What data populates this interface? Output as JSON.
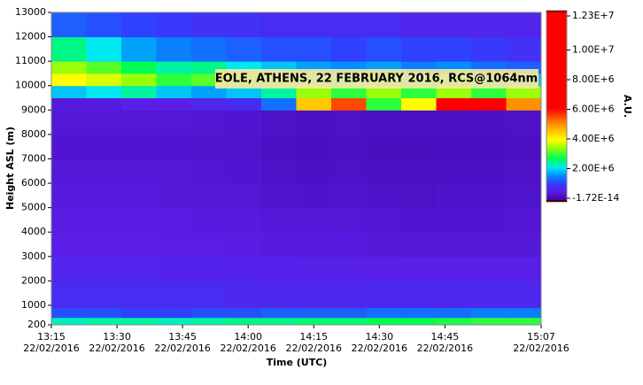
{
  "chart_data": {
    "type": "heatmap",
    "title": "EOLE, ATHENS, 22 FEBRUARY 2016, RCS@1064nm",
    "x_label": "Time (UTC)",
    "y_label": "Height ASL (m)",
    "colorbar_label": "A.U.",
    "x": [
      795,
      803,
      811,
      819,
      827,
      835,
      843,
      851,
      859,
      867,
      875,
      883,
      891,
      899,
      907
    ],
    "y": [
      200,
      500,
      900,
      2000,
      3000,
      4000,
      5000,
      6000,
      7000,
      8000,
      9000,
      9500,
      10000,
      10500,
      11000,
      12000,
      13000
    ],
    "values": [
      [
        2400000,
        2500000,
        2500000,
        2400000,
        2500000,
        2600000,
        2600000,
        2700000,
        2700000,
        2800000,
        2800000,
        2900000,
        3000000,
        3000000
      ],
      [
        1300000,
        1300000,
        1200000,
        1200000,
        1300000,
        1300000,
        1400000,
        1400000,
        1400000,
        1500000,
        1500000,
        1500000,
        1600000,
        1600000
      ],
      [
        900000,
        900000,
        900000,
        900000,
        900000,
        850000,
        850000,
        850000,
        850000,
        850000,
        850000,
        850000,
        850000,
        850000
      ],
      [
        800000,
        800000,
        800000,
        780000,
        780000,
        760000,
        750000,
        740000,
        740000,
        720000,
        720000,
        720000,
        720000,
        720000
      ],
      [
        700000,
        700000,
        700000,
        680000,
        680000,
        650000,
        620000,
        600000,
        600000,
        580000,
        560000,
        560000,
        560000,
        560000
      ],
      [
        650000,
        650000,
        640000,
        640000,
        620000,
        600000,
        560000,
        550000,
        540000,
        520000,
        500000,
        500000,
        500000,
        520000
      ],
      [
        600000,
        600000,
        600000,
        580000,
        560000,
        540000,
        480000,
        450000,
        460000,
        440000,
        420000,
        440000,
        440000,
        460000
      ],
      [
        550000,
        550000,
        550000,
        540000,
        520000,
        500000,
        420000,
        400000,
        420000,
        380000,
        380000,
        400000,
        400000,
        420000
      ],
      [
        500000,
        500000,
        500000,
        500000,
        480000,
        460000,
        380000,
        350000,
        380000,
        340000,
        340000,
        360000,
        360000,
        380000
      ],
      [
        550000,
        550000,
        550000,
        540000,
        520000,
        500000,
        420000,
        400000,
        420000,
        380000,
        380000,
        400000,
        400000,
        420000
      ],
      [
        600000,
        600000,
        700000,
        700000,
        800000,
        900000,
        1500000,
        4500000,
        5500000,
        3000000,
        4000000,
        6000000,
        6500000,
        5000000
      ],
      [
        2000000,
        2200000,
        2500000,
        2000000,
        1800000,
        2000000,
        2500000,
        3500000,
        3000000,
        3500000,
        3000000,
        3500000,
        3000000,
        3500000
      ],
      [
        4000000,
        3800000,
        3500000,
        3000000,
        3200000,
        2800000,
        2500000,
        2400000,
        2200000,
        2600000,
        2200000,
        2500000,
        2200000,
        2000000
      ],
      [
        3500000,
        3200000,
        2800000,
        2500000,
        2600000,
        2200000,
        2000000,
        1800000,
        1700000,
        1800000,
        1600000,
        1700000,
        1500000,
        1400000
      ],
      [
        2600000,
        2200000,
        1800000,
        1600000,
        1500000,
        1400000,
        1300000,
        1300000,
        1200000,
        1300000,
        1200000,
        1200000,
        1100000,
        1000000
      ],
      [
        1400000,
        1300000,
        1200000,
        1100000,
        1000000,
        1000000,
        900000,
        900000,
        900000,
        900000,
        800000,
        800000,
        800000,
        800000
      ]
    ],
    "xlim": [
      795,
      907
    ],
    "ylim": [
      200,
      13000
    ],
    "zlim": [
      -1.72e-14,
      12300000
    ],
    "xticks": [
      {
        "value": 795,
        "label": "13:15",
        "date": "22/02/2016"
      },
      {
        "value": 810,
        "label": "13:30",
        "date": "22/02/2016"
      },
      {
        "value": 825,
        "label": "13:45",
        "date": "22/02/2016"
      },
      {
        "value": 840,
        "label": "14:00",
        "date": "22/02/2016"
      },
      {
        "value": 855,
        "label": "14:15",
        "date": "22/02/2016"
      },
      {
        "value": 870,
        "label": "14:30",
        "date": "22/02/2016"
      },
      {
        "value": 885,
        "label": "14:45",
        "date": "22/02/2016"
      },
      {
        "value": 907,
        "label": "15:07",
        "date": "22/02/2016"
      }
    ],
    "yticks": [
      200,
      1000,
      2000,
      3000,
      4000,
      5000,
      6000,
      7000,
      8000,
      9000,
      10000,
      11000,
      12000,
      13000
    ],
    "zticks": [
      {
        "value": -1.72e-14,
        "label": "-1.72E-14"
      },
      {
        "value": 2000000,
        "label": "2.00E+6"
      },
      {
        "value": 4000000,
        "label": "4.00E+6"
      },
      {
        "value": 6000000,
        "label": "6.00E+6"
      },
      {
        "value": 8000000,
        "label": "8.00E+6"
      },
      {
        "value": 10000000,
        "label": "1.00E+7"
      },
      {
        "value": 12300000,
        "label": "1.23E+7"
      }
    ],
    "colormap": [
      [
        0,
        "#3a0098"
      ],
      [
        700000,
        "#5a1ee8"
      ],
      [
        1200000,
        "#3040ff"
      ],
      [
        1700000,
        "#0090ff"
      ],
      [
        2200000,
        "#00e8f0"
      ],
      [
        2800000,
        "#00ff50"
      ],
      [
        3600000,
        "#b0ff00"
      ],
      [
        4000000,
        "#ffff00"
      ],
      [
        5000000,
        "#ff9000"
      ],
      [
        6000000,
        "#ff0000"
      ],
      [
        12300000,
        "#ff0000"
      ]
    ]
  }
}
